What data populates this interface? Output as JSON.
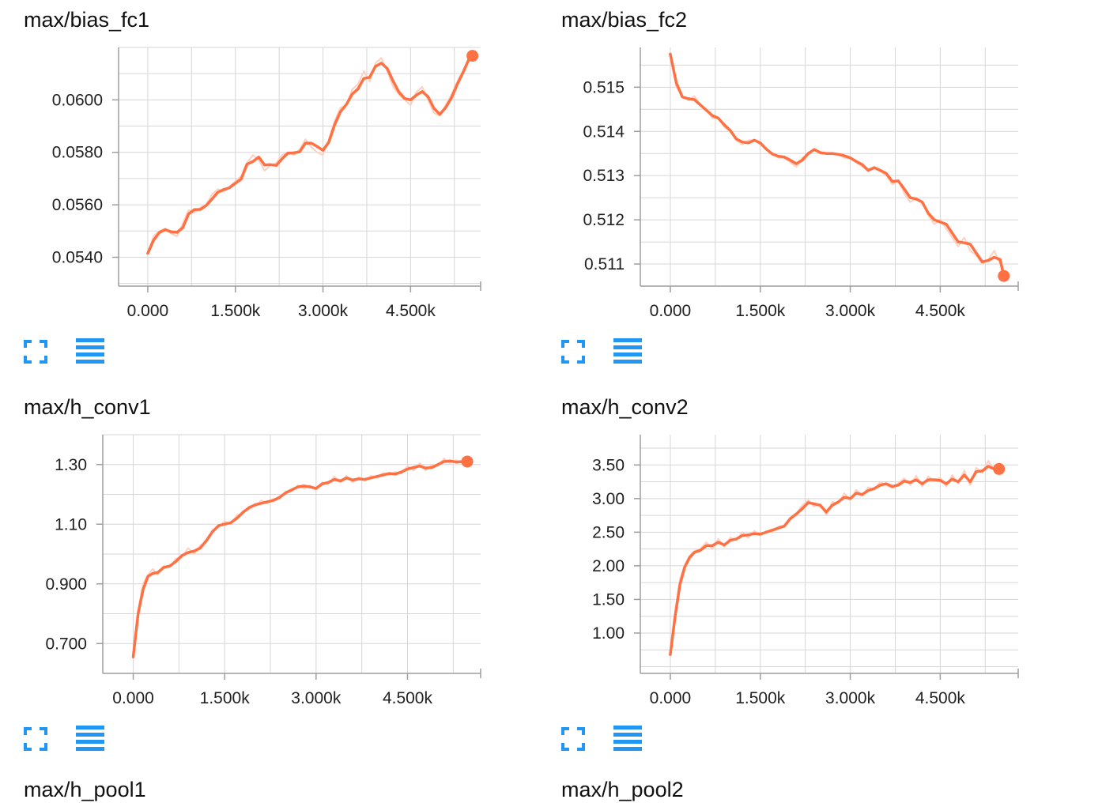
{
  "colors": {
    "line": "#ff7043",
    "line_raw": "#ffd0bf",
    "grid": "#d6d6d6",
    "axis": "#9e9e9e",
    "icon": "#2196f3"
  },
  "icons": {
    "expand": "fullscreen-icon",
    "data_table": "list-icon"
  },
  "next_row_titles": [
    "max/h_pool1",
    "max/h_pool2"
  ],
  "chart_data": [
    {
      "type": "line",
      "title": "max/bias_fc1",
      "xlabel": "",
      "ylabel": "",
      "xlim": [
        -500,
        5700
      ],
      "ylim": [
        0.0529,
        0.062
      ],
      "x_ticks": [
        0,
        1500,
        3000,
        4500
      ],
      "x_tick_labels": [
        "0.000",
        "1.500k",
        "3.000k",
        "4.500k"
      ],
      "y_ticks": [
        0.054,
        0.056,
        0.058,
        0.06
      ],
      "y_tick_labels": [
        "0.0540",
        "0.0560",
        "0.0580",
        "0.0600"
      ],
      "grid": true,
      "series": [
        {
          "x": [
            0,
            100,
            200,
            300,
            400,
            500,
            600,
            700,
            800,
            900,
            1000,
            1100,
            1200,
            1300,
            1400,
            1500,
            1600,
            1700,
            1800,
            1900,
            2000,
            2100,
            2200,
            2300,
            2400,
            2500,
            2600,
            2700,
            2800,
            2900,
            3000,
            3100,
            3200,
            3300,
            3400,
            3500,
            3600,
            3700,
            3800,
            3900,
            4000,
            4100,
            4200,
            4300,
            4400,
            4500,
            4600,
            4700,
            4800,
            4900,
            5000,
            5100,
            5200,
            5300,
            5400,
            5500,
            5560
          ],
          "y": [
            0.05415,
            0.05465,
            0.05495,
            0.05505,
            0.05497,
            0.05495,
            0.05513,
            0.05565,
            0.05582,
            0.05582,
            0.05597,
            0.05622,
            0.05648,
            0.05658,
            0.05665,
            0.05682,
            0.05698,
            0.05755,
            0.05765,
            0.05782,
            0.05752,
            0.05753,
            0.0575,
            0.05775,
            0.05797,
            0.05798,
            0.05802,
            0.05835,
            0.05835,
            0.05822,
            0.05808,
            0.05838,
            0.05905,
            0.05955,
            0.05982,
            0.06022,
            0.06042,
            0.06082,
            0.06086,
            0.06128,
            0.0614,
            0.0612,
            0.06072,
            0.0603,
            0.06005,
            0.06,
            0.06018,
            0.06032,
            0.06012,
            0.05968,
            0.05945,
            0.0597,
            0.06008,
            0.0606,
            0.06105,
            0.06155,
            0.06168
          ],
          "raw_y": [
            0.05415,
            0.0548,
            0.055,
            0.0551,
            0.0549,
            0.0548,
            0.0553,
            0.0558,
            0.0557,
            0.0559,
            0.056,
            0.0564,
            0.0566,
            0.0565,
            0.0567,
            0.0569,
            0.0571,
            0.0576,
            0.0579,
            0.0577,
            0.0573,
            0.0575,
            0.0576,
            0.0579,
            0.058,
            0.0579,
            0.0581,
            0.0585,
            0.0582,
            0.058,
            0.0579,
            0.0585,
            0.0592,
            0.0597,
            0.0598,
            0.0604,
            0.0606,
            0.0611,
            0.0607,
            0.0614,
            0.0616,
            0.0611,
            0.0605,
            0.0602,
            0.06,
            0.0598,
            0.0603,
            0.0605,
            0.06,
            0.0595,
            0.0594,
            0.0598,
            0.0602,
            0.0607,
            0.0611,
            0.0616,
            0.06168
          ]
        }
      ],
      "last_point": [
        5560,
        0.06168
      ]
    },
    {
      "type": "line",
      "title": "max/bias_fc2",
      "xlabel": "",
      "ylabel": "",
      "xlim": [
        -500,
        5800
      ],
      "ylim": [
        0.5105,
        0.5159
      ],
      "x_ticks": [
        0,
        1500,
        3000,
        4500
      ],
      "x_tick_labels": [
        "0.000",
        "1.500k",
        "3.000k",
        "4.500k"
      ],
      "y_ticks": [
        0.511,
        0.512,
        0.513,
        0.514,
        0.515
      ],
      "y_tick_labels": [
        "0.511",
        "0.512",
        "0.513",
        "0.514",
        "0.515"
      ],
      "grid": true,
      "series": [
        {
          "x": [
            0,
            100,
            200,
            300,
            400,
            500,
            600,
            700,
            800,
            900,
            1000,
            1100,
            1200,
            1300,
            1400,
            1500,
            1600,
            1700,
            1800,
            1900,
            2000,
            2100,
            2200,
            2300,
            2400,
            2500,
            2600,
            2700,
            2800,
            2900,
            3000,
            3100,
            3200,
            3300,
            3400,
            3500,
            3600,
            3700,
            3800,
            3900,
            4000,
            4100,
            4200,
            4300,
            4400,
            4500,
            4600,
            4700,
            4800,
            4900,
            5000,
            5100,
            5200,
            5300,
            5400,
            5500,
            5560
          ],
          "y": [
            0.51575,
            0.5151,
            0.51478,
            0.51474,
            0.51472,
            0.5146,
            0.51448,
            0.51436,
            0.5143,
            0.51415,
            0.51402,
            0.51383,
            0.51376,
            0.51374,
            0.5138,
            0.51374,
            0.5136,
            0.51349,
            0.51344,
            0.51342,
            0.51335,
            0.51327,
            0.51335,
            0.5135,
            0.51359,
            0.51352,
            0.5135,
            0.5135,
            0.51348,
            0.51345,
            0.5134,
            0.51332,
            0.51325,
            0.51312,
            0.51318,
            0.51312,
            0.51305,
            0.51287,
            0.51288,
            0.5127,
            0.5125,
            0.51247,
            0.5124,
            0.51215,
            0.512,
            0.51195,
            0.5119,
            0.5117,
            0.5115,
            0.51148,
            0.51145,
            0.51125,
            0.51105,
            0.51108,
            0.51115,
            0.5111,
            0.51073
          ],
          "raw_y": [
            0.51575,
            0.515,
            0.5148,
            0.5147,
            0.5148,
            0.5146,
            0.5145,
            0.5143,
            0.5143,
            0.5141,
            0.514,
            0.5138,
            0.5137,
            0.5138,
            0.5138,
            0.5137,
            0.5136,
            0.5135,
            0.5134,
            0.5134,
            0.5133,
            0.5132,
            0.5134,
            0.5135,
            0.5136,
            0.5135,
            0.5135,
            0.5135,
            0.5135,
            0.5134,
            0.5134,
            0.5133,
            0.5132,
            0.5131,
            0.5132,
            0.5131,
            0.513,
            0.5128,
            0.5129,
            0.5126,
            0.5124,
            0.5125,
            0.5124,
            0.5121,
            0.5119,
            0.512,
            0.5118,
            0.5116,
            0.5114,
            0.5116,
            0.5113,
            0.5112,
            0.511,
            0.5111,
            0.5113,
            0.511,
            0.51073
          ]
        }
      ],
      "last_point": [
        5560,
        0.51073
      ]
    },
    {
      "type": "line",
      "title": "max/h_conv1",
      "xlabel": "",
      "ylabel": "",
      "xlim": [
        -500,
        5700
      ],
      "ylim": [
        0.6,
        1.4
      ],
      "x_ticks": [
        0,
        1500,
        3000,
        4500
      ],
      "x_tick_labels": [
        "0.000",
        "1.500k",
        "3.000k",
        "4.500k"
      ],
      "y_ticks": [
        0.7,
        0.9,
        1.1,
        1.3
      ],
      "y_tick_labels": [
        "0.700",
        "0.900",
        "1.10",
        "1.30"
      ],
      "grid": true,
      "series": [
        {
          "x": [
            0,
            80,
            160,
            240,
            320,
            400,
            500,
            600,
            700,
            800,
            900,
            1000,
            1100,
            1200,
            1300,
            1400,
            1500,
            1600,
            1700,
            1800,
            1900,
            2000,
            2100,
            2200,
            2300,
            2400,
            2500,
            2600,
            2700,
            2800,
            2900,
            3000,
            3100,
            3200,
            3300,
            3400,
            3500,
            3600,
            3700,
            3800,
            3900,
            4000,
            4100,
            4200,
            4300,
            4400,
            4500,
            4600,
            4700,
            4800,
            4900,
            5000,
            5100,
            5200,
            5300,
            5400,
            5480
          ],
          "y": [
            0.655,
            0.8,
            0.88,
            0.925,
            0.935,
            0.938,
            0.955,
            0.96,
            0.975,
            0.995,
            1.005,
            1.01,
            1.02,
            1.045,
            1.075,
            1.095,
            1.1,
            1.105,
            1.12,
            1.14,
            1.155,
            1.165,
            1.17,
            1.175,
            1.18,
            1.19,
            1.205,
            1.215,
            1.225,
            1.228,
            1.225,
            1.22,
            1.235,
            1.24,
            1.25,
            1.245,
            1.255,
            1.248,
            1.252,
            1.25,
            1.255,
            1.26,
            1.265,
            1.27,
            1.268,
            1.275,
            1.285,
            1.29,
            1.295,
            1.288,
            1.29,
            1.3,
            1.31,
            1.312,
            1.308,
            1.31,
            1.31
          ],
          "raw_y": [
            0.655,
            0.81,
            0.9,
            0.93,
            0.95,
            0.93,
            0.96,
            0.955,
            0.985,
            0.99,
            1.02,
            1.0,
            1.03,
            1.04,
            1.08,
            1.09,
            1.11,
            1.1,
            1.13,
            1.135,
            1.16,
            1.16,
            1.18,
            1.17,
            1.185,
            1.185,
            1.21,
            1.21,
            1.23,
            1.22,
            1.23,
            1.215,
            1.24,
            1.235,
            1.26,
            1.24,
            1.262,
            1.24,
            1.258,
            1.245,
            1.262,
            1.255,
            1.272,
            1.265,
            1.275,
            1.27,
            1.295,
            1.28,
            1.305,
            1.28,
            1.3,
            1.295,
            1.32,
            1.305,
            1.315,
            1.305,
            1.31
          ]
        }
      ],
      "last_point": [
        5480,
        1.31
      ]
    },
    {
      "type": "line",
      "title": "max/h_conv2",
      "xlabel": "",
      "ylabel": "",
      "xlim": [
        -500,
        5800
      ],
      "ylim": [
        0.4,
        3.95
      ],
      "x_ticks": [
        0,
        1500,
        3000,
        4500
      ],
      "x_tick_labels": [
        "0.000",
        "1.500k",
        "3.000k",
        "4.500k"
      ],
      "y_ticks": [
        1.0,
        1.5,
        2.0,
        2.5,
        3.0,
        3.5
      ],
      "y_tick_labels": [
        "1.00",
        "1.50",
        "2.00",
        "2.50",
        "3.00",
        "3.50"
      ],
      "grid": true,
      "series": [
        {
          "x": [
            0,
            80,
            160,
            240,
            320,
            400,
            500,
            600,
            700,
            800,
            900,
            1000,
            1100,
            1200,
            1300,
            1400,
            1500,
            1600,
            1700,
            1800,
            1900,
            2000,
            2100,
            2200,
            2300,
            2400,
            2500,
            2600,
            2700,
            2800,
            2900,
            3000,
            3100,
            3200,
            3300,
            3400,
            3500,
            3600,
            3700,
            3800,
            3900,
            4000,
            4100,
            4200,
            4300,
            4400,
            4500,
            4600,
            4700,
            4800,
            4900,
            5000,
            5100,
            5200,
            5300,
            5400,
            5480
          ],
          "y": [
            0.68,
            1.25,
            1.72,
            1.98,
            2.12,
            2.2,
            2.23,
            2.3,
            2.3,
            2.35,
            2.31,
            2.38,
            2.4,
            2.45,
            2.46,
            2.48,
            2.47,
            2.5,
            2.53,
            2.56,
            2.59,
            2.7,
            2.77,
            2.85,
            2.94,
            2.92,
            2.9,
            2.8,
            2.9,
            2.95,
            3.02,
            3.0,
            3.08,
            3.06,
            3.12,
            3.15,
            3.2,
            3.22,
            3.18,
            3.2,
            3.26,
            3.24,
            3.28,
            3.22,
            3.28,
            3.28,
            3.27,
            3.22,
            3.29,
            3.25,
            3.35,
            3.25,
            3.4,
            3.41,
            3.48,
            3.44,
            3.44
          ],
          "raw_y": [
            0.68,
            1.3,
            1.8,
            2.0,
            2.15,
            2.22,
            2.25,
            2.35,
            2.25,
            2.4,
            2.28,
            2.42,
            2.38,
            2.5,
            2.42,
            2.52,
            2.45,
            2.52,
            2.5,
            2.58,
            2.6,
            2.72,
            2.78,
            2.9,
            2.98,
            2.88,
            2.92,
            2.76,
            2.95,
            2.93,
            3.08,
            2.98,
            3.13,
            3.04,
            3.17,
            3.13,
            3.25,
            3.2,
            3.16,
            3.23,
            3.3,
            3.2,
            3.34,
            3.18,
            3.33,
            3.26,
            3.31,
            3.18,
            3.35,
            3.22,
            3.42,
            3.2,
            3.46,
            3.38,
            3.56,
            3.42,
            3.44
          ]
        }
      ],
      "last_point": [
        5480,
        3.44
      ]
    }
  ]
}
